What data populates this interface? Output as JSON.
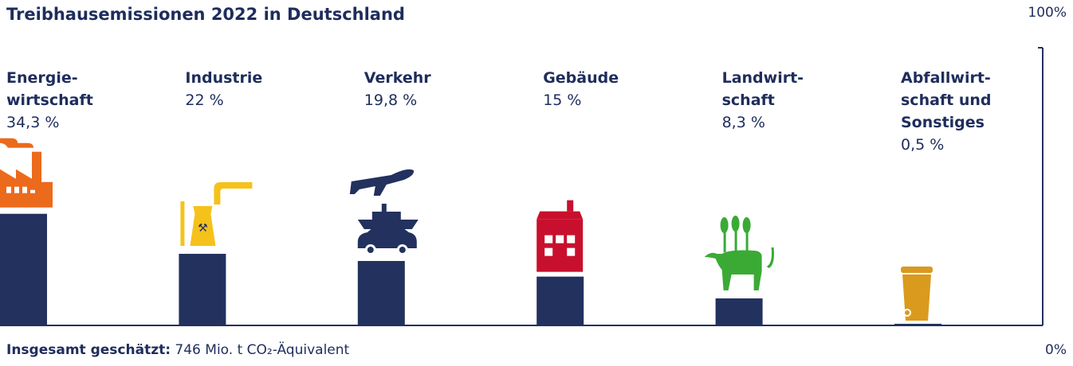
{
  "chart_data": {
    "type": "bar",
    "title": "Treibhausemissionen 2022 in Deutschland",
    "categories": [
      "Energie-\nwirtschaft",
      "Industrie",
      "Verkehr",
      "Gebäude",
      "Landwirt-\nschaft",
      "Abfallwirt-\nschaft und\nSonstiges"
    ],
    "values": [
      34.3,
      22,
      19.8,
      15,
      8.3,
      0.5
    ],
    "value_labels": [
      "34,3 %",
      "22 %",
      "19,8 %",
      "15 %",
      "8,3 %",
      "0,5 %"
    ],
    "color": "#22315e",
    "ylim": [
      0,
      100
    ],
    "yticks": [
      {
        "value": 0,
        "label": "0%"
      },
      {
        "value": 100,
        "label": "100%"
      }
    ],
    "note_label": "Insgesamt geschätzt:",
    "note": "746 Mio. t CO₂-Äquivalent"
  }
}
